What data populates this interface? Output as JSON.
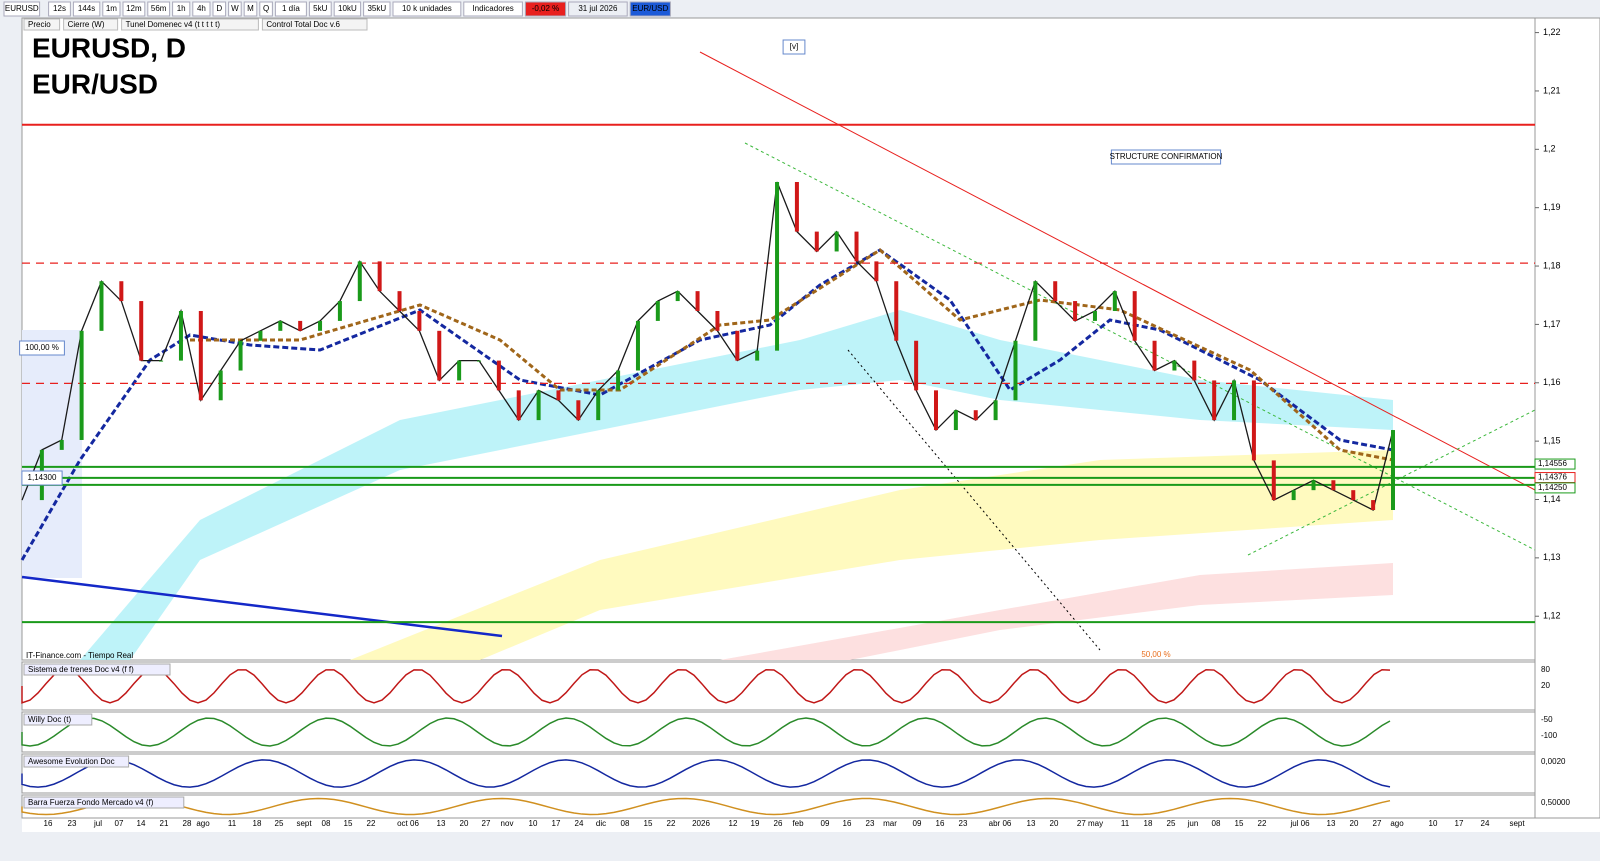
{
  "toolbar": {
    "symbol": "EURUSD",
    "buttons": [
      "12s",
      "144s",
      "1m",
      "12m",
      "56m",
      "1h",
      "4h",
      "D",
      "W",
      "M",
      "Q",
      "1 día",
      "5kU",
      "10kU",
      "35kU",
      "10 k unidades",
      "Indicadores"
    ],
    "change": "-0,02 %",
    "date": "31 jul 2026",
    "pair": "EUR/USD"
  },
  "legend_bar": [
    "Precio",
    "Cierre (W)",
    "Tunel Domenec v4 (t t t t t)",
    "Control Total Doc v.6"
  ],
  "chart": {
    "type": "line",
    "title": "EURUSD, D",
    "subtitle": "EUR/USD",
    "annotations": [
      "[v]",
      "STRUCTURE CONFIRMATION",
      "100,00 %",
      "1,14300",
      "IT-Finance.com - Tiempo Real",
      "50,00 %"
    ],
    "close": [
      1.1399,
      1.1485,
      1.1502,
      1.1689,
      1.1774,
      1.174,
      1.1638,
      1.1638,
      1.1723,
      1.157,
      1.1621,
      1.1672,
      1.1689,
      1.1706,
      1.1689,
      1.1706,
      1.174,
      1.1808,
      1.1757,
      1.1723,
      1.1689,
      1.1604,
      1.1638,
      1.1638,
      1.1587,
      1.1536,
      1.1587,
      1.157,
      1.1536,
      1.1587,
      1.1621,
      1.1706,
      1.174,
      1.1757,
      1.1723,
      1.1689,
      1.1638,
      1.1655,
      1.1944,
      1.1859,
      1.1825,
      1.1859,
      1.1808,
      1.1774,
      1.1672,
      1.1587,
      1.1519,
      1.1553,
      1.1536,
      1.157,
      1.1672,
      1.1774,
      1.174,
      1.1706,
      1.1723,
      1.1757,
      1.1672,
      1.1621,
      1.1638,
      1.1604,
      1.1536,
      1.1604,
      1.1467,
      1.1399,
      1.1416,
      1.1433,
      1.1416,
      1.1399,
      1.1382,
      1.1519
    ],
    "color": "#1a1a1a",
    "levels": [
      {
        "value": 1.2042,
        "color": "#e8201e",
        "dash": false
      },
      {
        "value": 1.1805,
        "color": "#e8201e",
        "dash": true
      },
      {
        "value": 1.1599,
        "color": "#e8201e",
        "dash": true
      },
      {
        "value": 1.1456,
        "color": "#1a9a1a",
        "dash": false
      },
      {
        "value": 1.1437,
        "color": "#1a9a1a",
        "dash": false
      },
      {
        "value": 1.1425,
        "color": "#1a9a1a",
        "dash": false
      },
      {
        "value": 1.119,
        "color": "#1a9a1a",
        "dash": false
      }
    ],
    "price_labels": [
      {
        "value": 1.14556,
        "label": "1,14556",
        "color": "#1a9a1a"
      },
      {
        "value": 1.14376,
        "label": "1,14376",
        "color": "#e8201e"
      },
      {
        "value": 1.1425,
        "label": "1,14250",
        "color": "#1a9a1a"
      }
    ],
    "ylim": [
      1.1125,
      1.2225
    ],
    "yticks": [
      {
        "value": 1.22,
        "label": "1,22"
      },
      {
        "value": 1.21,
        "label": "1,21"
      },
      {
        "value": 1.2,
        "label": "1,2"
      },
      {
        "value": 1.19,
        "label": "1,19"
      },
      {
        "value": 1.18,
        "label": "1,18"
      },
      {
        "value": 1.17,
        "label": "1,17"
      },
      {
        "value": 1.16,
        "label": "1,16"
      },
      {
        "value": 1.15,
        "label": "1,15"
      },
      {
        "value": 1.14,
        "label": "1,14"
      },
      {
        "value": 1.13,
        "label": "1,13"
      },
      {
        "value": 1.12,
        "label": "1,12"
      }
    ],
    "x_labels": [
      "16",
      "23",
      "jul",
      "07",
      "14",
      "21",
      "28",
      "ago",
      "11",
      "18",
      "25",
      "sept",
      "08",
      "15",
      "22",
      "oct 06",
      "13",
      "20",
      "27",
      "nov",
      "10",
      "17",
      "24",
      "dic",
      "08",
      "15",
      "22",
      "2026",
      "12",
      "19",
      "26",
      "feb",
      "09",
      "16",
      "23",
      "mar",
      "09",
      "16",
      "23",
      "abr 06",
      "13",
      "20",
      "27 may",
      "11",
      "18",
      "25",
      "jun",
      "08",
      "15",
      "22",
      "jul 06",
      "13",
      "20",
      "27",
      "ago",
      "10",
      "17",
      "24",
      "sept"
    ]
  },
  "panels": [
    {
      "name": "Sistema de trenes Doc v4 (f f)",
      "labels": [
        "80",
        "20"
      ]
    },
    {
      "name": "Willy Doc (t)",
      "labels": [
        "-50",
        "-100"
      ]
    },
    {
      "name": "Awesome Evolution Doc",
      "labels": [
        "0,0020"
      ]
    },
    {
      "name": "Barra Fuerza Fondo Mercado v4 (f)",
      "labels": [
        "0,50000"
      ]
    }
  ]
}
